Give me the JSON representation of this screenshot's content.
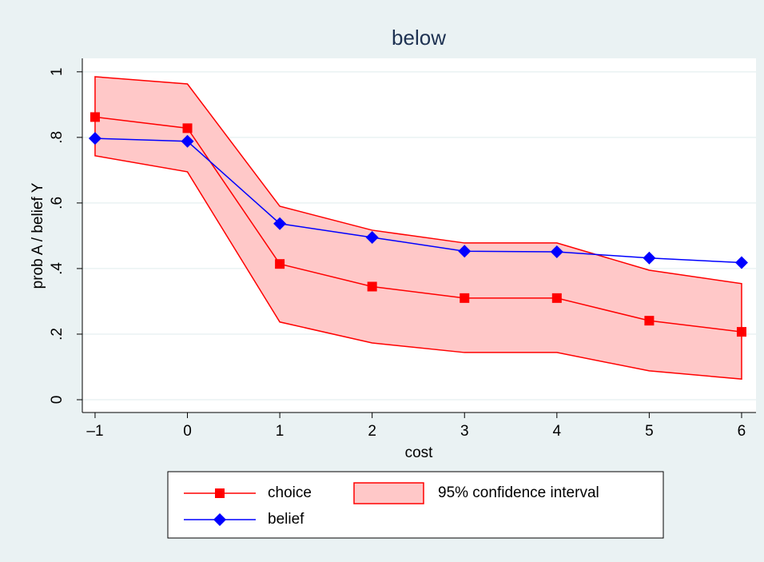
{
  "chart_data": {
    "type": "line",
    "title": "below",
    "x_label": "cost",
    "y_label": "prob A / belief Y",
    "x": [
      -1,
      0,
      1,
      2,
      3,
      4,
      5,
      6
    ],
    "series": [
      {
        "name": "choice",
        "color": "#ff0000",
        "marker": "square",
        "values": [
          0.862,
          0.828,
          0.414,
          0.345,
          0.31,
          0.31,
          0.241,
          0.207
        ]
      },
      {
        "name": "belief",
        "color": "#0000ff",
        "marker": "diamond",
        "values": [
          0.797,
          0.788,
          0.537,
          0.495,
          0.453,
          0.451,
          0.432,
          0.418
        ]
      }
    ],
    "interval": {
      "name": "95% confidence interval",
      "color": "#ff0000",
      "fill": "#ffc8c8",
      "upper": [
        0.985,
        0.963,
        0.59,
        0.517,
        0.478,
        0.478,
        0.395,
        0.354
      ],
      "lower": [
        0.744,
        0.695,
        0.237,
        0.173,
        0.144,
        0.144,
        0.088,
        0.063
      ]
    },
    "xlim": [
      -1.138,
      6.156
    ],
    "ylim": [
      -0.039,
      1.041
    ],
    "xticks": [
      {
        "value": -1,
        "label": "–1"
      },
      0,
      1,
      2,
      3,
      4,
      5,
      6
    ],
    "yticks": [
      0,
      {
        "value": 0.2,
        "label": ".2"
      },
      {
        "value": 0.4,
        "label": ".4"
      },
      {
        "value": 0.6,
        "label": ".6"
      },
      {
        "value": 0.8,
        "label": ".8"
      },
      1
    ],
    "grid": true,
    "legend": "bottom"
  }
}
